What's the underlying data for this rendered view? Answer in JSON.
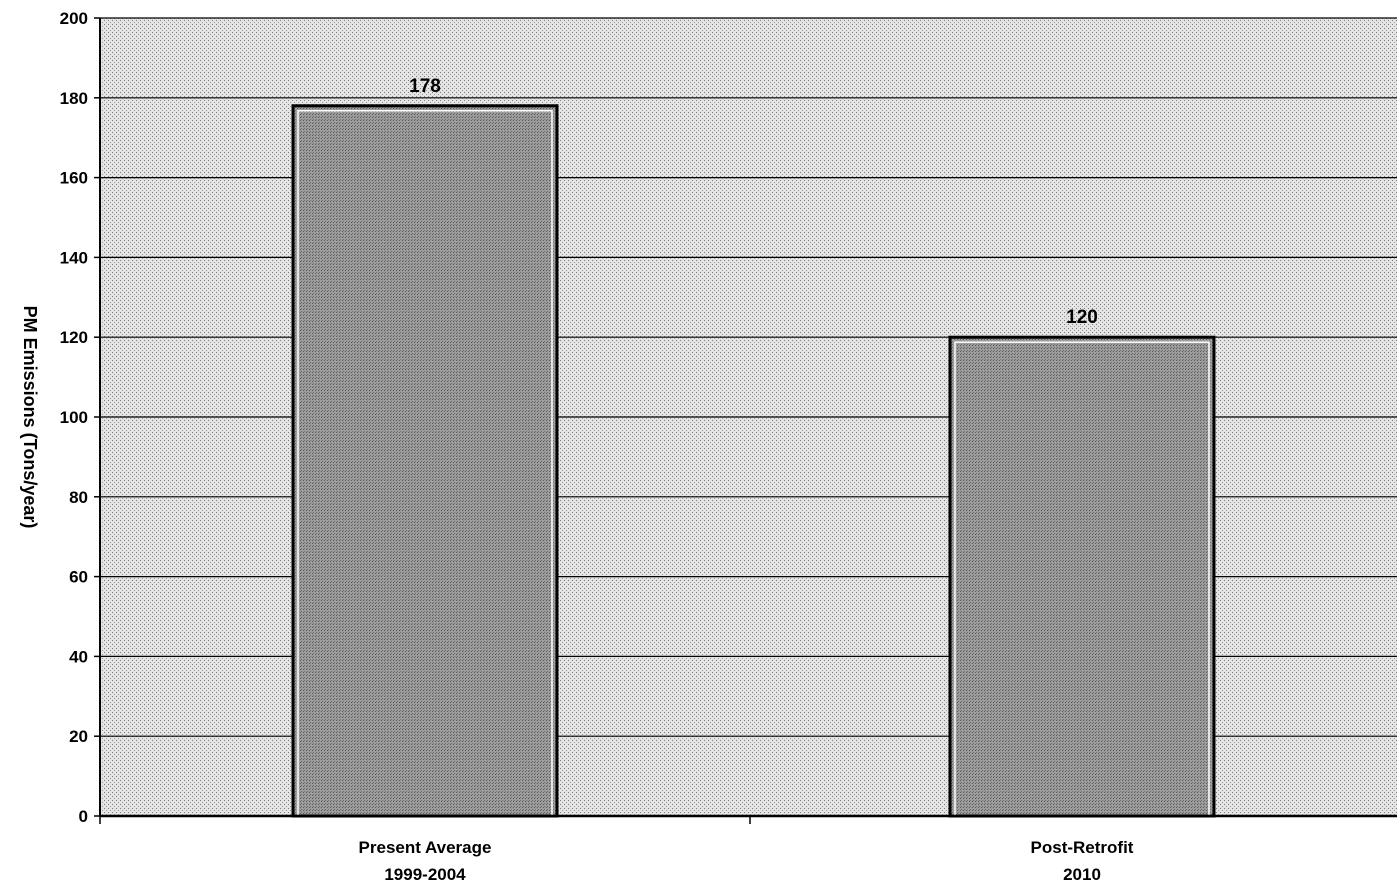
{
  "chart_data": {
    "type": "bar",
    "title": "",
    "xlabel": "",
    "ylabel": "PM Emissions (Tons/year)",
    "categories": [
      [
        "Present Average",
        "1999-2004"
      ],
      [
        "Post-Retrofit",
        "2010"
      ]
    ],
    "values": [
      178,
      120
    ],
    "data_labels": [
      "178",
      "120"
    ],
    "ylim": [
      0,
      200
    ],
    "yticks": [
      0,
      20,
      40,
      60,
      80,
      100,
      120,
      140,
      160,
      180,
      200
    ],
    "grid": true,
    "legend": "none",
    "colors": {
      "plot_background": "#d2d2d2",
      "bar_fill": "#8a8a8a",
      "bar_border": "#000000",
      "gridline": "#000000"
    }
  }
}
